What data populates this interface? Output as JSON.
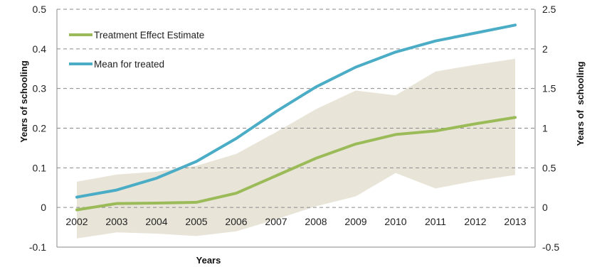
{
  "chart_data": {
    "type": "line",
    "title": "",
    "xlabel": "Years",
    "ylabel_left": "Years of schooling",
    "ylabel_right": "Years of  schooling",
    "x": [
      "2002",
      "2003",
      "2004",
      "2005",
      "2006",
      "2007",
      "2008",
      "2009",
      "2010",
      "2011",
      "2012",
      "2013"
    ],
    "y_left": {
      "min": -0.1,
      "max": 0.5,
      "step": 0.1,
      "ticks": [
        "-0.1",
        "0",
        "0.1",
        "0.2",
        "0.3",
        "0.4",
        "0.5"
      ]
    },
    "y_right": {
      "min": -0.5,
      "max": 2.5,
      "step": 0.5,
      "ticks": [
        "-0.5",
        "0",
        "0.5",
        "1",
        "1.5",
        "2",
        "2.5"
      ]
    },
    "grid": "horizontal dashed",
    "legend_position": "top-left",
    "series": [
      {
        "name": "Treatment Effect Estimate",
        "axis": "left",
        "color": "#9BBB59",
        "values": [
          -0.006,
          0.01,
          0.011,
          0.013,
          0.036,
          0.08,
          0.124,
          0.16,
          0.184,
          0.193,
          0.211,
          0.227
        ]
      },
      {
        "name": "Mean for treated",
        "axis": "right",
        "color": "#4BACC6",
        "values": [
          0.13,
          0.22,
          0.37,
          0.58,
          0.87,
          1.21,
          1.52,
          1.77,
          1.96,
          2.1,
          2.2,
          2.3
        ]
      }
    ],
    "confidence_band": {
      "axis": "left",
      "color": "#E8E4D8",
      "upper": [
        0.065,
        0.083,
        0.09,
        0.105,
        0.135,
        0.19,
        0.248,
        0.295,
        0.283,
        0.343,
        0.36,
        0.375
      ],
      "lower": [
        -0.078,
        -0.063,
        -0.066,
        -0.072,
        -0.06,
        -0.03,
        0.003,
        0.028,
        0.087,
        0.048,
        0.067,
        0.082
      ]
    }
  }
}
